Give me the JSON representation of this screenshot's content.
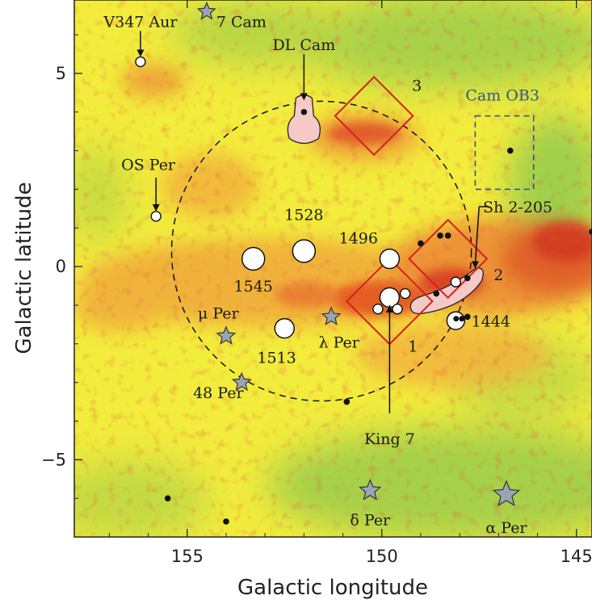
{
  "chart_data": {
    "type": "scatter",
    "title": "",
    "xlabel": "Galactic longitude",
    "ylabel": "Galactic latitude",
    "xlim": [
      157.9,
      144.6
    ],
    "ylim": [
      -7.0,
      6.9
    ],
    "x_ticks": [
      {
        "value": 155,
        "label": "155"
      },
      {
        "value": 150,
        "label": "150"
      },
      {
        "value": 145,
        "label": "145"
      }
    ],
    "y_ticks": [
      {
        "value": 5,
        "label": "5"
      },
      {
        "value": 0,
        "label": "0"
      },
      {
        "value": -5,
        "label": "−5"
      }
    ],
    "colors": {
      "background_map": [
        "#8fc84f",
        "#c9dc3e",
        "#f4ef3a",
        "#f2b43a",
        "#e65a26",
        "#c7301f"
      ],
      "boxes": "#d42020",
      "stars": "#9aa4b4",
      "cloud": "#f6c9c9",
      "cam_ob3": "#2e5a86"
    },
    "shell_circle": {
      "center_l": 151.55,
      "center_b": 0.4,
      "radius_deg": 3.85
    },
    "clusters": [
      {
        "name": "1528",
        "l": 152.0,
        "b": 0.4,
        "size": "large"
      },
      {
        "name": "1545",
        "l": 153.3,
        "b": 0.2,
        "size": "large"
      },
      {
        "name": "1496",
        "l": 149.8,
        "b": 0.2,
        "size": "medium"
      },
      {
        "name": "1513",
        "l": 152.5,
        "b": -1.6,
        "size": "medium"
      },
      {
        "name": "King 7",
        "l": 149.8,
        "b": -0.8,
        "size": "medium"
      },
      {
        "name": "1444",
        "l": 148.1,
        "b": -1.4,
        "size": "medium"
      }
    ],
    "small_open_markers": [
      {
        "l": 156.2,
        "b": 5.3
      },
      {
        "l": 155.8,
        "b": 1.3
      },
      {
        "l": 150.1,
        "b": -1.1
      },
      {
        "l": 149.6,
        "b": -1.1
      },
      {
        "l": 149.4,
        "b": -0.7
      },
      {
        "l": 148.1,
        "b": -0.4
      }
    ],
    "stars": [
      {
        "name": "7 Cam",
        "l": 154.5,
        "b": 6.6,
        "size": 1.0
      },
      {
        "name": "μ Per",
        "l": 154.0,
        "b": -1.8,
        "size": 1.05
      },
      {
        "name": "λ Per",
        "l": 151.3,
        "b": -1.3,
        "size": 1.05
      },
      {
        "name": "48 Per",
        "l": 153.6,
        "b": -3.0,
        "size": 1.05
      },
      {
        "name": "δ Per",
        "l": 150.3,
        "b": -5.8,
        "size": 1.2
      },
      {
        "name": "α Per",
        "l": 146.8,
        "b": -5.9,
        "size": 1.5
      }
    ],
    "black_dots": [
      {
        "l": 152.0,
        "b": 4.0
      },
      {
        "l": 146.7,
        "b": 3.0
      },
      {
        "l": 149.0,
        "b": 0.6
      },
      {
        "l": 148.5,
        "b": 0.8
      },
      {
        "l": 148.3,
        "b": 0.8
      },
      {
        "l": 148.6,
        "b": -0.7
      },
      {
        "l": 147.8,
        "b": -0.3
      },
      {
        "l": 148.0,
        "b": -1.3
      },
      {
        "l": 147.8,
        "b": -1.3
      },
      {
        "l": 144.6,
        "b": 0.9
      },
      {
        "l": 150.9,
        "b": -3.5
      },
      {
        "l": 155.5,
        "b": -6.0
      },
      {
        "l": 154.0,
        "b": -6.6
      }
    ],
    "regions": [
      {
        "name": "1",
        "center_l": 149.8,
        "center_b": -0.9,
        "half_deg": 1.1
      },
      {
        "name": "2",
        "center_l": 148.3,
        "center_b": 0.2,
        "half_deg": 1.0
      },
      {
        "name": "3",
        "center_l": 150.2,
        "center_b": 3.9,
        "half_deg": 1.0
      }
    ],
    "cam_ob3": {
      "name": "Cam OB3",
      "l_range": [
        147.6,
        146.1
      ],
      "b_range": [
        2.0,
        3.9
      ]
    },
    "annotations": [
      {
        "text": "V347 Aur",
        "target": "small open marker at (156.2, 5.3)"
      },
      {
        "text": "DL Cam",
        "target": "DL Cam cloud"
      },
      {
        "text": "OS Per",
        "target": "small open marker at (155.8, 1.3)"
      },
      {
        "text": "Sh 2-205",
        "target": "Sh 2-205 cloud"
      },
      {
        "text": "King 7",
        "target": "cluster King 7"
      }
    ]
  }
}
